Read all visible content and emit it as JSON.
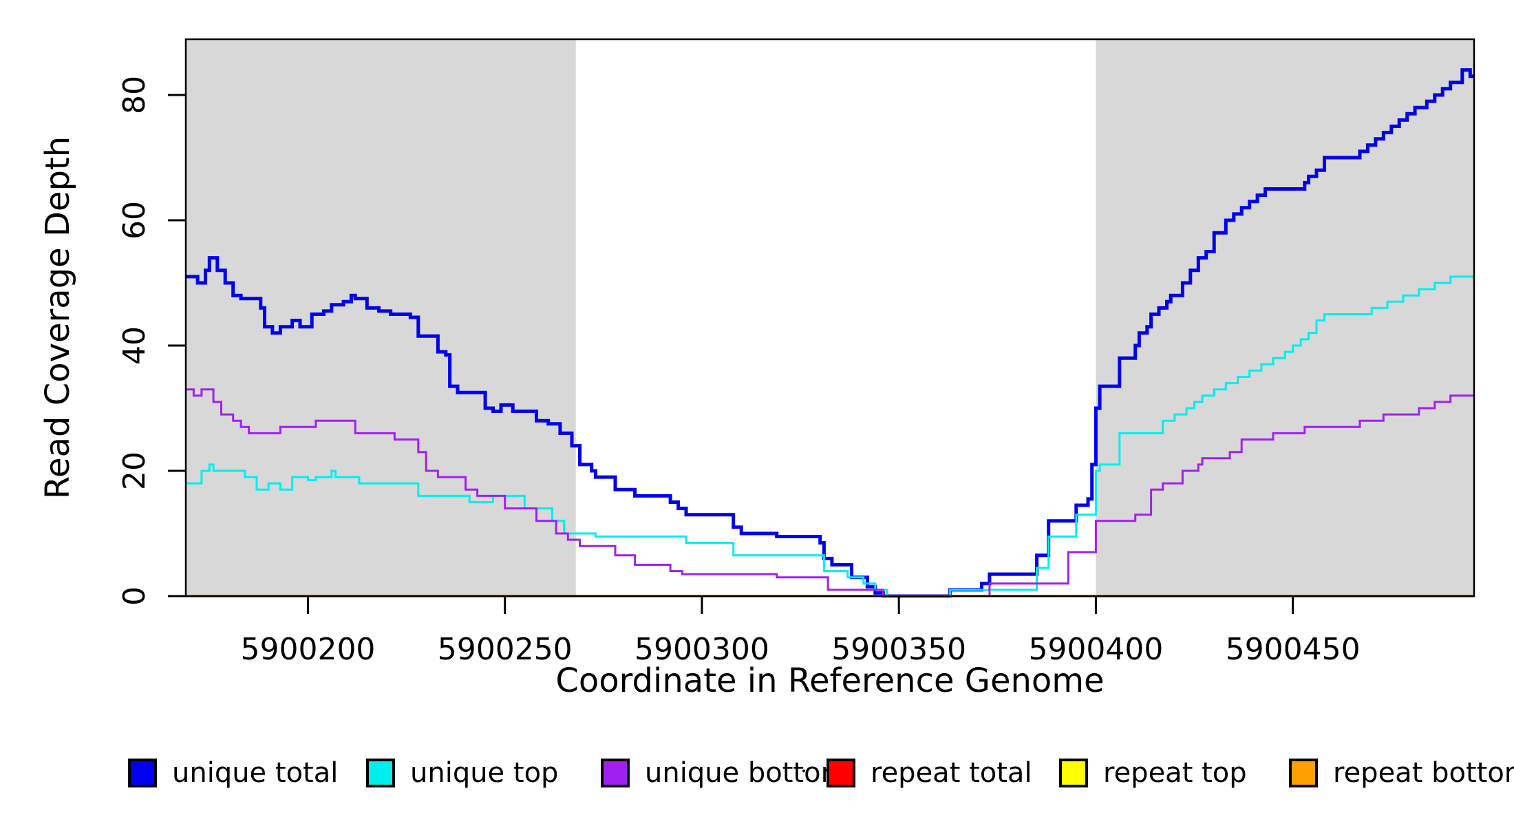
{
  "chart_data": {
    "type": "line",
    "subtype": "step-after-coverage-plot",
    "title": "",
    "xlabel": "Coordinate in Reference Genome",
    "ylabel": "Read Coverage Depth",
    "xlim": [
      5900169,
      5900496
    ],
    "ylim": [
      0,
      88.9
    ],
    "x_ticks": [
      5900200,
      5900250,
      5900300,
      5900350,
      5900400,
      5900450
    ],
    "y_ticks": [
      0,
      20,
      40,
      60,
      80
    ],
    "grid": false,
    "legend_position": "bottom",
    "band_color": "#D8D8D8",
    "axis_color": "#000000",
    "shaded_regions": [
      {
        "x0": 5900169,
        "x1": 5900268
      },
      {
        "x0": 5900400,
        "x1": 5900496
      }
    ],
    "series": [
      {
        "name": "unique total",
        "color": "#0000EE",
        "line_width": 5,
        "points": [
          [
            5900169,
            51
          ],
          [
            5900172,
            50
          ],
          [
            5900174,
            52
          ],
          [
            5900175,
            54
          ],
          [
            5900177,
            52
          ],
          [
            5900179,
            50
          ],
          [
            5900181,
            48
          ],
          [
            5900183,
            47.5
          ],
          [
            5900188,
            46
          ],
          [
            5900189,
            43
          ],
          [
            5900191,
            42
          ],
          [
            5900193,
            43
          ],
          [
            5900196,
            44
          ],
          [
            5900198,
            43
          ],
          [
            5900201,
            45
          ],
          [
            5900204,
            45.5
          ],
          [
            5900206,
            46.5
          ],
          [
            5900209,
            47
          ],
          [
            5900211,
            48
          ],
          [
            5900212,
            47.5
          ],
          [
            5900215,
            46
          ],
          [
            5900218,
            45.5
          ],
          [
            5900221,
            45
          ],
          [
            5900226,
            44.5
          ],
          [
            5900228,
            41.5
          ],
          [
            5900233,
            39
          ],
          [
            5900235,
            38.5
          ],
          [
            5900236,
            33.5
          ],
          [
            5900238,
            32.5
          ],
          [
            5900245,
            30
          ],
          [
            5900247,
            29.5
          ],
          [
            5900249,
            30.5
          ],
          [
            5900252,
            29.5
          ],
          [
            5900258,
            28
          ],
          [
            5900261,
            27.5
          ],
          [
            5900264,
            26
          ],
          [
            5900267,
            24
          ],
          [
            5900269,
            21
          ],
          [
            5900272,
            20
          ],
          [
            5900273,
            19
          ],
          [
            5900278,
            17
          ],
          [
            5900283,
            16
          ],
          [
            5900292,
            15
          ],
          [
            5900294,
            14
          ],
          [
            5900296,
            13
          ],
          [
            5900308,
            11
          ],
          [
            5900310,
            10
          ],
          [
            5900319,
            9.5
          ],
          [
            5900330,
            8.5
          ],
          [
            5900331,
            6
          ],
          [
            5900333,
            5
          ],
          [
            5900338,
            3
          ],
          [
            5900342,
            1.5
          ],
          [
            5900344,
            0.5
          ],
          [
            5900346,
            0
          ],
          [
            5900363,
            1
          ],
          [
            5900371,
            2
          ],
          [
            5900373,
            3.5
          ],
          [
            5900385,
            6.5
          ],
          [
            5900388,
            12
          ],
          [
            5900395,
            14.5
          ],
          [
            5900398,
            15.5
          ],
          [
            5900399,
            21
          ],
          [
            5900400,
            30
          ],
          [
            5900401,
            33.5
          ],
          [
            5900406,
            38
          ],
          [
            5900410,
            40
          ],
          [
            5900411,
            42
          ],
          [
            5900413,
            43
          ],
          [
            5900414,
            45
          ],
          [
            5900416,
            46
          ],
          [
            5900418,
            47
          ],
          [
            5900419,
            48
          ],
          [
            5900422,
            50
          ],
          [
            5900424,
            52
          ],
          [
            5900426,
            54
          ],
          [
            5900428,
            55
          ],
          [
            5900430,
            58
          ],
          [
            5900433,
            60
          ],
          [
            5900435,
            61
          ],
          [
            5900437,
            62
          ],
          [
            5900439,
            63
          ],
          [
            5900441,
            64
          ],
          [
            5900443,
            65
          ],
          [
            5900453,
            66
          ],
          [
            5900454,
            67
          ],
          [
            5900456,
            68
          ],
          [
            5900458,
            70
          ],
          [
            5900467,
            71
          ],
          [
            5900469,
            72
          ],
          [
            5900471,
            73
          ],
          [
            5900473,
            74
          ],
          [
            5900475,
            75
          ],
          [
            5900477,
            76
          ],
          [
            5900479,
            77
          ],
          [
            5900481,
            78
          ],
          [
            5900484,
            79
          ],
          [
            5900486,
            80
          ],
          [
            5900488,
            81
          ],
          [
            5900490,
            82
          ],
          [
            5900493,
            84
          ],
          [
            5900495,
            83
          ]
        ]
      },
      {
        "name": "unique top",
        "color": "#00EEEE",
        "line_width": 3,
        "points": [
          [
            5900169,
            18
          ],
          [
            5900173,
            20
          ],
          [
            5900175,
            21
          ],
          [
            5900176,
            20
          ],
          [
            5900184,
            19
          ],
          [
            5900187,
            17
          ],
          [
            5900190,
            18
          ],
          [
            5900193,
            17
          ],
          [
            5900196,
            19
          ],
          [
            5900200,
            18.5
          ],
          [
            5900202,
            19
          ],
          [
            5900206,
            20
          ],
          [
            5900207,
            19
          ],
          [
            5900213,
            18
          ],
          [
            5900228,
            16
          ],
          [
            5900241,
            15
          ],
          [
            5900247,
            16
          ],
          [
            5900255,
            14
          ],
          [
            5900262,
            12
          ],
          [
            5900265,
            10
          ],
          [
            5900273,
            9.5
          ],
          [
            5900296,
            8.5
          ],
          [
            5900308,
            6.5
          ],
          [
            5900331,
            4
          ],
          [
            5900337,
            3
          ],
          [
            5900341,
            2
          ],
          [
            5900344,
            1
          ],
          [
            5900347,
            0
          ],
          [
            5900363,
            1
          ],
          [
            5900385,
            4.5
          ],
          [
            5900388,
            9.5
          ],
          [
            5900395,
            13
          ],
          [
            5900400,
            20
          ],
          [
            5900401,
            21
          ],
          [
            5900406,
            26
          ],
          [
            5900417,
            28
          ],
          [
            5900420,
            29
          ],
          [
            5900423,
            30
          ],
          [
            5900425,
            31
          ],
          [
            5900427,
            32
          ],
          [
            5900430,
            33
          ],
          [
            5900433,
            34
          ],
          [
            5900436,
            35
          ],
          [
            5900439,
            36
          ],
          [
            5900442,
            37
          ],
          [
            5900445,
            38
          ],
          [
            5900448,
            39
          ],
          [
            5900450,
            40
          ],
          [
            5900452,
            41
          ],
          [
            5900454,
            42
          ],
          [
            5900456,
            44
          ],
          [
            5900458,
            45
          ],
          [
            5900470,
            46
          ],
          [
            5900474,
            47
          ],
          [
            5900478,
            48
          ],
          [
            5900482,
            49
          ],
          [
            5900486,
            50
          ],
          [
            5900490,
            51
          ]
        ]
      },
      {
        "name": "unique bottom",
        "color": "#A020F0",
        "line_width": 3,
        "points": [
          [
            5900169,
            33
          ],
          [
            5900171,
            32
          ],
          [
            5900173,
            33
          ],
          [
            5900176,
            31
          ],
          [
            5900178,
            29
          ],
          [
            5900181,
            28
          ],
          [
            5900183,
            27
          ],
          [
            5900185,
            26
          ],
          [
            5900193,
            27
          ],
          [
            5900202,
            28
          ],
          [
            5900212,
            26
          ],
          [
            5900222,
            25
          ],
          [
            5900228,
            23
          ],
          [
            5900230,
            20
          ],
          [
            5900233,
            19
          ],
          [
            5900240,
            17
          ],
          [
            5900243,
            16
          ],
          [
            5900250,
            14
          ],
          [
            5900258,
            12
          ],
          [
            5900263,
            10
          ],
          [
            5900266,
            9
          ],
          [
            5900269,
            8
          ],
          [
            5900278,
            6.5
          ],
          [
            5900283,
            5
          ],
          [
            5900292,
            4
          ],
          [
            5900295,
            3.5
          ],
          [
            5900319,
            3
          ],
          [
            5900332,
            1
          ],
          [
            5900346,
            0
          ],
          [
            5900373,
            2
          ],
          [
            5900393,
            7
          ],
          [
            5900400,
            12
          ],
          [
            5900410,
            13
          ],
          [
            5900414,
            17
          ],
          [
            5900417,
            18
          ],
          [
            5900422,
            20
          ],
          [
            5900426,
            21
          ],
          [
            5900427,
            22
          ],
          [
            5900434,
            23
          ],
          [
            5900437,
            25
          ],
          [
            5900445,
            26
          ],
          [
            5900453,
            27
          ],
          [
            5900467,
            28
          ],
          [
            5900473,
            29
          ],
          [
            5900482,
            30
          ],
          [
            5900486,
            31
          ],
          [
            5900490,
            32
          ]
        ]
      },
      {
        "name": "repeat total",
        "color": "#FF0000",
        "line_width": 3,
        "points": [
          [
            5900169,
            0
          ],
          [
            5900496,
            0
          ]
        ]
      },
      {
        "name": "repeat top",
        "color": "#FFFF00",
        "line_width": 3,
        "points": [
          [
            5900169,
            0
          ],
          [
            5900496,
            0
          ]
        ]
      },
      {
        "name": "repeat bottom",
        "color": "#FFA000",
        "line_width": 4,
        "points": [
          [
            5900169,
            0
          ],
          [
            5900496,
            0
          ]
        ]
      }
    ]
  },
  "legend": {
    "items": [
      {
        "label": "unique total",
        "color": "#0000EE"
      },
      {
        "label": "unique top",
        "color": "#00EEEE"
      },
      {
        "label": "unique bottom",
        "color": "#A020F0"
      },
      {
        "label": "repeat total",
        "color": "#FF0000"
      },
      {
        "label": "repeat top",
        "color": "#FFFF00"
      },
      {
        "label": "repeat bottom",
        "color": "#FFA000"
      }
    ],
    "stray_mark": "·"
  }
}
